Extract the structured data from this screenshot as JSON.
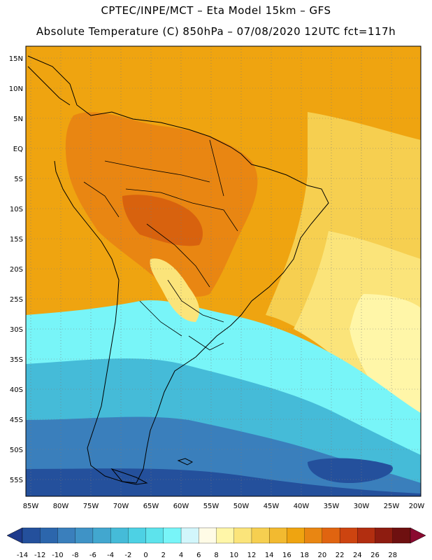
{
  "header": {
    "line1": "CPTEC/INPE/MCT –  Eta Model 15km – GFS",
    "line2": "Absolute Temperature (C) 850hPa – 07/08/2020 12UTC fct=117h"
  },
  "axes": {
    "lat_labels": [
      "15N",
      "10N",
      "5N",
      "EQ",
      "5S",
      "10S",
      "15S",
      "20S",
      "25S",
      "30S",
      "35S",
      "40S",
      "45S",
      "50S",
      "55S"
    ],
    "lon_labels": [
      "85W",
      "80W",
      "75W",
      "70W",
      "65W",
      "60W",
      "55W",
      "50W",
      "45W",
      "40W",
      "35W",
      "30W",
      "25W",
      "20W"
    ]
  },
  "colorbar": {
    "ticks": [
      "-14",
      "-12",
      "-10",
      "-8",
      "-6",
      "-4",
      "-2",
      "0",
      "2",
      "4",
      "6",
      "8",
      "10",
      "12",
      "14",
      "16",
      "18",
      "20",
      "22",
      "24",
      "26",
      "28"
    ],
    "colors": [
      "#1e3a8c",
      "#24509c",
      "#2c66ac",
      "#3a7fbc",
      "#3f93c6",
      "#42a7cf",
      "#45bbd8",
      "#4dd1e4",
      "#5de3ec",
      "#78f5f8",
      "#d2f6fb",
      "#fffbe6",
      "#fff6a8",
      "#fbe47a",
      "#f6cf50",
      "#f2ba30",
      "#efa410",
      "#e98612",
      "#e06410",
      "#cd4410",
      "#b22e10",
      "#8e1c10",
      "#6e1010",
      "#8a0a30"
    ],
    "under_color": "#1e3a8c",
    "over_color": "#8a0a30"
  },
  "colors": {
    "ocean_tropical": "#efa410",
    "land_warm": "#e98612",
    "land_hot": "#d8620e",
    "subtropical": "#f6cf50",
    "mid": "#fbe47a",
    "cold_front": "#fff6a8",
    "cool": "#78f5f8",
    "cold": "#45bbd8",
    "colder": "#3a7fbc",
    "coldest": "#24509c",
    "coastline": "#000000",
    "grid": "#7a7a7a"
  }
}
